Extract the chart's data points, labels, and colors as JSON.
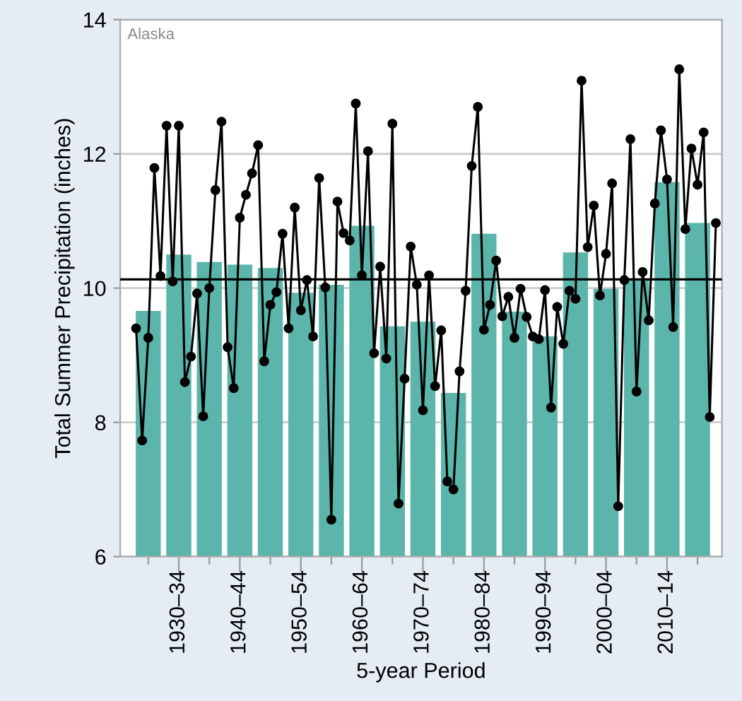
{
  "chart_data": [
    {
      "type": "bar",
      "xlabel": "5-year Period",
      "ylabel": "Total Summer Precipitation (inches)",
      "annotations": [
        "Alaska"
      ],
      "categories": [
        null,
        "1930–34",
        null,
        "1940–44",
        null,
        "1950–54",
        null,
        "1960–64",
        null,
        "1970–74",
        null,
        "1980–84",
        null,
        "1990–94",
        null,
        "2000–04",
        null,
        "2010–14",
        null
      ],
      "series": [
        {
          "color": "#5bb5aa",
          "values": [
            9.66,
            10.5,
            10.39,
            10.35,
            10.3,
            9.93,
            10.05,
            10.93,
            9.43,
            9.5,
            8.44,
            10.81,
            9.65,
            9.28,
            10.53,
            9.99,
            10.12,
            11.58,
            10.97
          ]
        }
      ],
      "ylim": [
        6,
        14
      ],
      "yticks": [
        6,
        8,
        10,
        12,
        14
      ],
      "grid": "y",
      "ref_lines": [
        {
          "axis": "y",
          "value": 10.13,
          "color": "#000000"
        }
      ]
    },
    {
      "type": "line",
      "marker": "circle",
      "line_style": "solid",
      "tick_labels": false,
      "categories": [
        null,
        null,
        null,
        null,
        null,
        null,
        null,
        null,
        null,
        null,
        null,
        null,
        null,
        null,
        null,
        null,
        null,
        null,
        null,
        null,
        null,
        null,
        null,
        null,
        null,
        null,
        null,
        null,
        null,
        null,
        null,
        null,
        null,
        null,
        null,
        null,
        null,
        null,
        null,
        null,
        null,
        null,
        null,
        null,
        null,
        null,
        null,
        null,
        null,
        null,
        null,
        null,
        null,
        null,
        null,
        null,
        null,
        null,
        null,
        null,
        null,
        null,
        null,
        null,
        null,
        null,
        null,
        null,
        null,
        null,
        null,
        null,
        null,
        null,
        null,
        null,
        null,
        null,
        null,
        null,
        null,
        null,
        null,
        null,
        null,
        null,
        null,
        null,
        null,
        null,
        null,
        null,
        null,
        null,
        null,
        null
      ],
      "series": [
        {
          "color": "#000000",
          "values": [
            9.4,
            7.73,
            9.26,
            11.79,
            10.18,
            12.42,
            10.1,
            12.42,
            8.6,
            8.98,
            9.92,
            8.09,
            10.0,
            11.46,
            12.48,
            9.12,
            8.51,
            11.05,
            11.39,
            11.71,
            12.13,
            8.91,
            9.75,
            9.94,
            10.81,
            9.4,
            11.2,
            9.67,
            10.12,
            9.28,
            11.64,
            10.01,
            6.55,
            11.29,
            10.82,
            10.71,
            12.75,
            10.19,
            12.04,
            9.03,
            10.32,
            8.95,
            12.45,
            6.79,
            8.65,
            10.62,
            10.05,
            8.18,
            10.19,
            8.54,
            9.37,
            7.12,
            7.0,
            8.76,
            9.96,
            11.82,
            12.7,
            9.38,
            9.75,
            10.41,
            9.58,
            9.87,
            9.26,
            9.99,
            9.57,
            9.28,
            9.24,
            9.97,
            8.22,
            9.72,
            9.17,
            9.96,
            9.84,
            13.09,
            10.61,
            11.23,
            9.89,
            10.51,
            11.56,
            6.75,
            10.12,
            12.22,
            8.46,
            10.24,
            9.52,
            11.26,
            12.35,
            11.62,
            9.42,
            13.26,
            10.88,
            12.08,
            11.54,
            12.32,
            8.08,
            10.97
          ]
        }
      ],
      "ylim": [
        6,
        14
      ],
      "yticks": [
        6,
        8,
        10,
        12,
        14
      ]
    }
  ]
}
